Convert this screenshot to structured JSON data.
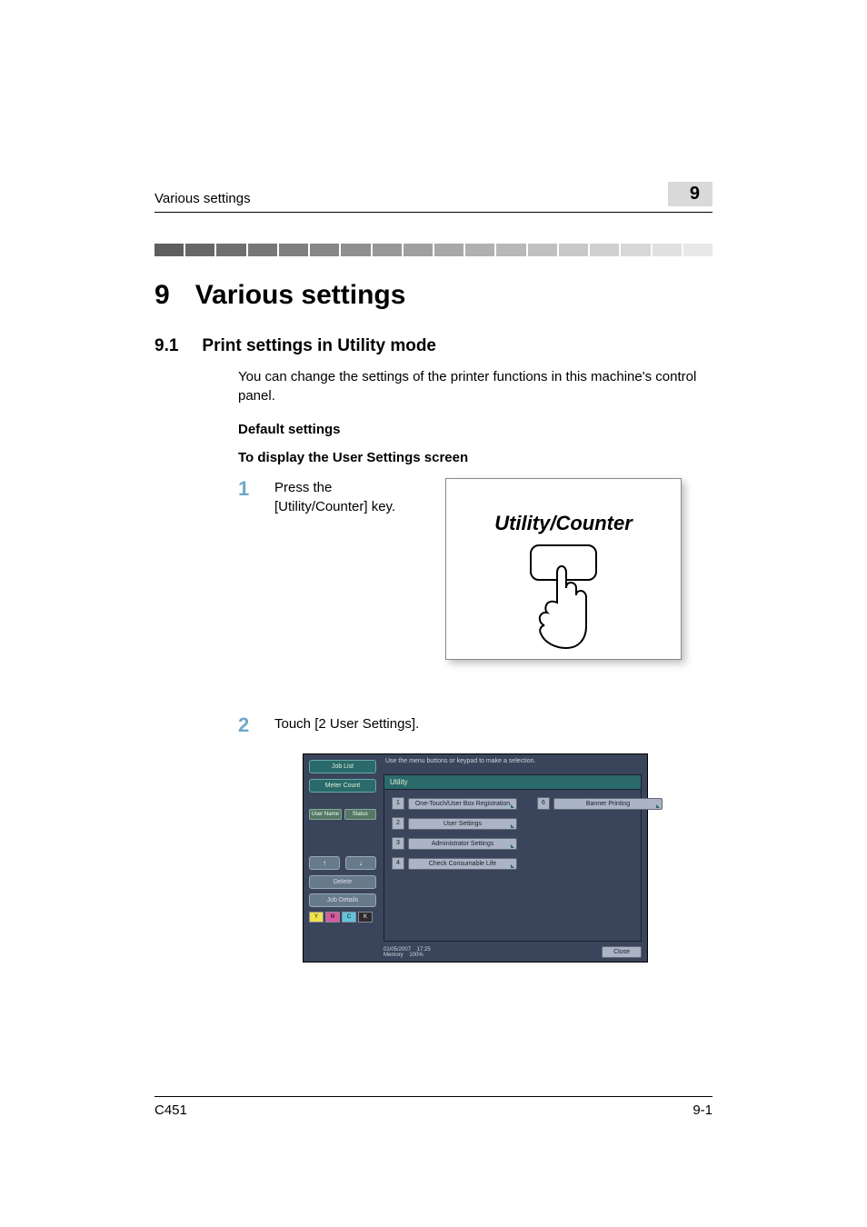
{
  "header": {
    "running_head": "Various settings",
    "page_badge": "9"
  },
  "gradient_bar": {
    "segments": 18,
    "start_color": "#5f5f5f",
    "end_color": "#e8e8e8"
  },
  "section": {
    "number": "9",
    "title": "Various settings"
  },
  "subsection": {
    "number": "9.1",
    "title": "Print settings in Utility mode"
  },
  "intro_para": "You can change the settings of the printer functions in this machine's control panel.",
  "h_default": "Default settings",
  "h_display": "To display the User Settings screen",
  "steps": {
    "one": {
      "num": "1",
      "text": "Press the [Utility/Counter] key."
    },
    "two": {
      "num": "2",
      "text": "Touch [2 User Settings]."
    }
  },
  "utility_counter_fig": {
    "label": "Utility/Counter"
  },
  "screenshot": {
    "top_message": "Use the menu buttons or keypad to make a selection.",
    "side": {
      "job_list": "Job List",
      "meter_count": "Meter Count",
      "user_name": "User Name",
      "status": "Status",
      "arrow_up": "↑",
      "arrow_down": "↓",
      "delete": "Delete",
      "job_details": "Job Details",
      "toner": {
        "y": "Y",
        "m": "M",
        "c": "C",
        "k": "K"
      },
      "toner_colors": {
        "y": "#f2e24b",
        "m": "#d85aa0",
        "c": "#5ec6d8",
        "k": "#2b2b2b"
      }
    },
    "main": {
      "title": "Utility",
      "items_left": [
        {
          "n": "1",
          "label": "One-Touch/User Box Registration"
        },
        {
          "n": "2",
          "label": "User Settings"
        },
        {
          "n": "3",
          "label": "Administrator Settings"
        },
        {
          "n": "4",
          "label": "Check Consumable Life"
        }
      ],
      "items_right": [
        {
          "n": "6",
          "label": "Banner Printing"
        }
      ]
    },
    "footer": {
      "date": "01/05/2007",
      "time": "17:25",
      "memory_label": "Memory",
      "memory_value": "100%",
      "close": "Close"
    },
    "colors": {
      "panel_bg": "#3a445a",
      "accent": "#2a6a6a",
      "button_face": "#aab4c4",
      "button_text": "#1a2030"
    }
  },
  "footer": {
    "model": "C451",
    "page": "9-1"
  }
}
